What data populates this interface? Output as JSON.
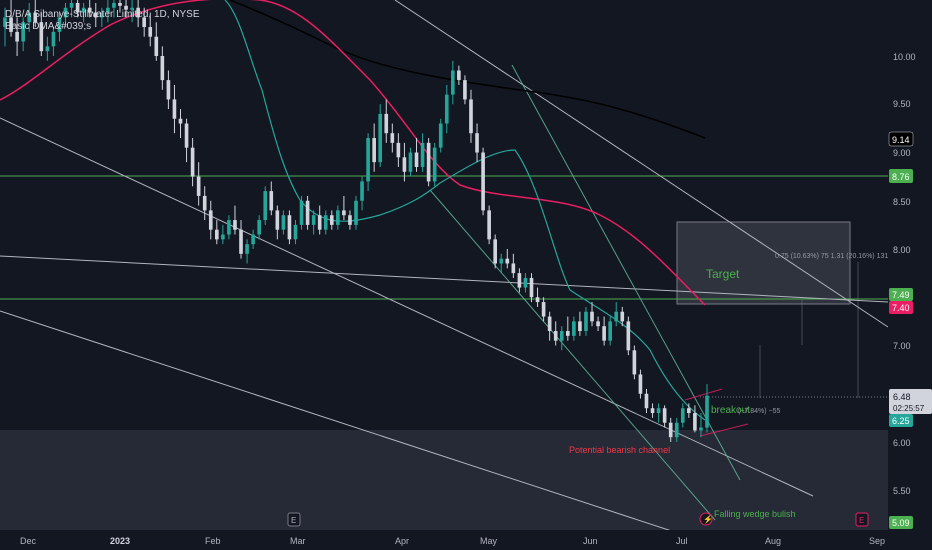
{
  "header": {
    "title": "D/B/A Sibanye-Stillwater Limited, 1D, NYSE",
    "indicator": "Basic DMA&#039;s"
  },
  "theme": {
    "background": "#131722",
    "up": "#26a69a",
    "down": "#d1d4dc",
    "ma_fast": "#26a69a",
    "ma_slow": "#e91e63",
    "ma_long": "#000000",
    "hline": "#4caf50",
    "trendline": "#b2b5be",
    "text": "#b2b5be"
  },
  "axis": {
    "y_ticks": [
      "10.00",
      "9.50",
      "9.00",
      "8.50",
      "8.00",
      "7.00",
      "6.00",
      "5.50"
    ],
    "x_ticks": [
      "Dec",
      "2023",
      "Feb",
      "Mar",
      "Apr",
      "May",
      "Jun",
      "Jul",
      "Aug",
      "Sep"
    ]
  },
  "price_tags": {
    "p914": "9.14",
    "p876": "8.76",
    "p749": "7.49",
    "p740": "7.40",
    "p648": "6.48",
    "countdown": "02:25:57",
    "p625": "6.25",
    "p509": "5.09"
  },
  "annotations": {
    "target": "Target",
    "measure": "0.75 (10.63%) 75 1.31 (20.16%) 131",
    "breakout": "breakout",
    "breakout_measure": "(−7.84%) −55",
    "bearish_channel": "Potential bearish channel",
    "falling_wedge": "Falling wedge bulish",
    "event_e": "E"
  },
  "chart_data": {
    "type": "candlestick",
    "title": "D/B/A Sibanye-Stillwater Limited, 1D, NYSE",
    "ylim": [
      5.0,
      10.6
    ],
    "x_range": [
      "Nov 2022",
      "Sep 2023"
    ],
    "horizontal_levels": [
      8.76,
      7.49
    ],
    "last_price": 6.48,
    "moving_average_values": [
      9.14,
      7.4,
      6.25
    ],
    "y_ticks": [
      10.0,
      9.5,
      9.0,
      8.5,
      8.0,
      7.0,
      6.0,
      5.5
    ],
    "candles": [
      {
        "o": 10.3,
        "h": 10.5,
        "l": 10.1,
        "c": 10.4
      },
      {
        "o": 10.4,
        "h": 10.6,
        "l": 10.2,
        "c": 10.25
      },
      {
        "o": 10.25,
        "h": 10.4,
        "l": 10.0,
        "c": 10.15
      },
      {
        "o": 10.15,
        "h": 10.4,
        "l": 10.05,
        "c": 10.35
      },
      {
        "o": 10.35,
        "h": 10.55,
        "l": 10.25,
        "c": 10.45
      },
      {
        "o": 10.45,
        "h": 10.6,
        "l": 10.3,
        "c": 10.35
      },
      {
        "o": 10.35,
        "h": 10.45,
        "l": 10.0,
        "c": 10.05
      },
      {
        "o": 10.05,
        "h": 10.2,
        "l": 9.95,
        "c": 10.1
      },
      {
        "o": 10.1,
        "h": 10.3,
        "l": 10.0,
        "c": 10.25
      },
      {
        "o": 10.25,
        "h": 10.45,
        "l": 10.15,
        "c": 10.4
      },
      {
        "o": 10.4,
        "h": 10.55,
        "l": 10.3,
        "c": 10.5
      },
      {
        "o": 10.5,
        "h": 10.6,
        "l": 10.4,
        "c": 10.55
      },
      {
        "o": 10.55,
        "h": 10.6,
        "l": 10.4,
        "c": 10.45
      },
      {
        "o": 10.45,
        "h": 10.55,
        "l": 10.35,
        "c": 10.5
      },
      {
        "o": 10.5,
        "h": 10.6,
        "l": 10.4,
        "c": 10.45
      },
      {
        "o": 10.45,
        "h": 10.55,
        "l": 10.3,
        "c": 10.4
      },
      {
        "o": 10.4,
        "h": 10.5,
        "l": 10.3,
        "c": 10.45
      },
      {
        "o": 10.45,
        "h": 10.58,
        "l": 10.35,
        "c": 10.5
      },
      {
        "o": 10.5,
        "h": 10.6,
        "l": 10.4,
        "c": 10.55
      },
      {
        "o": 10.55,
        "h": 10.6,
        "l": 10.45,
        "c": 10.52
      },
      {
        "o": 10.52,
        "h": 10.6,
        "l": 10.4,
        "c": 10.48
      },
      {
        "o": 10.48,
        "h": 10.58,
        "l": 10.35,
        "c": 10.5
      },
      {
        "o": 10.5,
        "h": 10.6,
        "l": 10.3,
        "c": 10.4
      },
      {
        "o": 10.4,
        "h": 10.5,
        "l": 10.2,
        "c": 10.3
      },
      {
        "o": 10.3,
        "h": 10.45,
        "l": 10.1,
        "c": 10.2
      },
      {
        "o": 10.2,
        "h": 10.35,
        "l": 9.95,
        "c": 10.0
      },
      {
        "o": 10.0,
        "h": 10.1,
        "l": 9.65,
        "c": 9.75
      },
      {
        "o": 9.75,
        "h": 9.85,
        "l": 9.45,
        "c": 9.55
      },
      {
        "o": 9.55,
        "h": 9.7,
        "l": 9.2,
        "c": 9.35
      },
      {
        "o": 9.35,
        "h": 9.45,
        "l": 9.15,
        "c": 9.3
      },
      {
        "o": 9.3,
        "h": 9.35,
        "l": 8.9,
        "c": 9.05
      },
      {
        "o": 9.05,
        "h": 9.15,
        "l": 8.65,
        "c": 8.75
      },
      {
        "o": 8.75,
        "h": 8.9,
        "l": 8.45,
        "c": 8.55
      },
      {
        "o": 8.55,
        "h": 8.65,
        "l": 8.3,
        "c": 8.4
      },
      {
        "o": 8.4,
        "h": 8.5,
        "l": 8.1,
        "c": 8.2
      },
      {
        "o": 8.2,
        "h": 8.3,
        "l": 8.05,
        "c": 8.1
      },
      {
        "o": 8.1,
        "h": 8.25,
        "l": 8.05,
        "c": 8.15
      },
      {
        "o": 8.15,
        "h": 8.35,
        "l": 8.1,
        "c": 8.3
      },
      {
        "o": 8.3,
        "h": 8.45,
        "l": 8.15,
        "c": 8.2
      },
      {
        "o": 8.2,
        "h": 8.3,
        "l": 7.9,
        "c": 7.95
      },
      {
        "o": 7.95,
        "h": 8.1,
        "l": 7.85,
        "c": 8.05
      },
      {
        "o": 8.05,
        "h": 8.2,
        "l": 8.0,
        "c": 8.15
      },
      {
        "o": 8.15,
        "h": 8.35,
        "l": 8.1,
        "c": 8.3
      },
      {
        "o": 8.3,
        "h": 8.65,
        "l": 8.25,
        "c": 8.6
      },
      {
        "o": 8.6,
        "h": 8.7,
        "l": 8.35,
        "c": 8.4
      },
      {
        "o": 8.4,
        "h": 8.45,
        "l": 8.1,
        "c": 8.2
      },
      {
        "o": 8.2,
        "h": 8.4,
        "l": 8.15,
        "c": 8.35
      },
      {
        "o": 8.35,
        "h": 8.4,
        "l": 8.05,
        "c": 8.1
      },
      {
        "o": 8.1,
        "h": 8.3,
        "l": 8.05,
        "c": 8.25
      },
      {
        "o": 8.25,
        "h": 8.55,
        "l": 8.2,
        "c": 8.5
      },
      {
        "o": 8.5,
        "h": 8.55,
        "l": 8.2,
        "c": 8.25
      },
      {
        "o": 8.25,
        "h": 8.4,
        "l": 8.15,
        "c": 8.35
      },
      {
        "o": 8.35,
        "h": 8.45,
        "l": 8.15,
        "c": 8.2
      },
      {
        "o": 8.2,
        "h": 8.4,
        "l": 8.15,
        "c": 8.35
      },
      {
        "o": 8.35,
        "h": 8.4,
        "l": 8.2,
        "c": 8.25
      },
      {
        "o": 8.25,
        "h": 8.45,
        "l": 8.2,
        "c": 8.4
      },
      {
        "o": 8.4,
        "h": 8.55,
        "l": 8.3,
        "c": 8.35
      },
      {
        "o": 8.35,
        "h": 8.4,
        "l": 8.2,
        "c": 8.25
      },
      {
        "o": 8.25,
        "h": 8.55,
        "l": 8.2,
        "c": 8.5
      },
      {
        "o": 8.5,
        "h": 8.75,
        "l": 8.4,
        "c": 8.7
      },
      {
        "o": 8.7,
        "h": 9.2,
        "l": 8.6,
        "c": 9.15
      },
      {
        "o": 9.15,
        "h": 9.3,
        "l": 8.8,
        "c": 8.9
      },
      {
        "o": 8.9,
        "h": 9.5,
        "l": 8.85,
        "c": 9.4
      },
      {
        "o": 9.4,
        "h": 9.55,
        "l": 9.1,
        "c": 9.2
      },
      {
        "o": 9.2,
        "h": 9.3,
        "l": 9.0,
        "c": 9.1
      },
      {
        "o": 9.1,
        "h": 9.2,
        "l": 8.85,
        "c": 8.95
      },
      {
        "o": 8.95,
        "h": 9.1,
        "l": 8.7,
        "c": 8.8
      },
      {
        "o": 8.8,
        "h": 9.05,
        "l": 8.75,
        "c": 9.0
      },
      {
        "o": 9.0,
        "h": 9.15,
        "l": 8.8,
        "c": 8.85
      },
      {
        "o": 8.85,
        "h": 9.2,
        "l": 8.8,
        "c": 9.1
      },
      {
        "o": 9.1,
        "h": 9.15,
        "l": 8.65,
        "c": 8.7
      },
      {
        "o": 8.7,
        "h": 9.1,
        "l": 8.65,
        "c": 9.05
      },
      {
        "o": 9.05,
        "h": 9.35,
        "l": 9.0,
        "c": 9.3
      },
      {
        "o": 9.3,
        "h": 9.7,
        "l": 9.2,
        "c": 9.6
      },
      {
        "o": 9.6,
        "h": 9.95,
        "l": 9.5,
        "c": 9.85
      },
      {
        "o": 9.85,
        "h": 9.9,
        "l": 9.7,
        "c": 9.75
      },
      {
        "o": 9.75,
        "h": 9.8,
        "l": 9.5,
        "c": 9.55
      },
      {
        "o": 9.55,
        "h": 9.65,
        "l": 9.1,
        "c": 9.2
      },
      {
        "o": 9.2,
        "h": 9.3,
        "l": 8.9,
        "c": 9.0
      },
      {
        "o": 9.0,
        "h": 9.05,
        "l": 8.35,
        "c": 8.4
      },
      {
        "o": 8.4,
        "h": 8.45,
        "l": 8.05,
        "c": 8.1
      },
      {
        "o": 8.1,
        "h": 8.15,
        "l": 7.8,
        "c": 7.85
      },
      {
        "o": 7.85,
        "h": 7.95,
        "l": 7.75,
        "c": 7.9
      },
      {
        "o": 7.9,
        "h": 8.0,
        "l": 7.8,
        "c": 7.85
      },
      {
        "o": 7.85,
        "h": 7.95,
        "l": 7.7,
        "c": 7.75
      },
      {
        "o": 7.75,
        "h": 7.8,
        "l": 7.55,
        "c": 7.6
      },
      {
        "o": 7.6,
        "h": 7.75,
        "l": 7.55,
        "c": 7.7
      },
      {
        "o": 7.7,
        "h": 7.75,
        "l": 7.45,
        "c": 7.5
      },
      {
        "o": 7.5,
        "h": 7.6,
        "l": 7.4,
        "c": 7.45
      },
      {
        "o": 7.45,
        "h": 7.5,
        "l": 7.25,
        "c": 7.3
      },
      {
        "o": 7.3,
        "h": 7.35,
        "l": 7.05,
        "c": 7.15
      },
      {
        "o": 7.15,
        "h": 7.25,
        "l": 7.0,
        "c": 7.05
      },
      {
        "o": 7.05,
        "h": 7.2,
        "l": 6.95,
        "c": 7.15
      },
      {
        "o": 7.15,
        "h": 7.3,
        "l": 7.05,
        "c": 7.1
      },
      {
        "o": 7.1,
        "h": 7.3,
        "l": 7.05,
        "c": 7.25
      },
      {
        "o": 7.25,
        "h": 7.35,
        "l": 7.1,
        "c": 7.15
      },
      {
        "o": 7.15,
        "h": 7.4,
        "l": 7.1,
        "c": 7.35
      },
      {
        "o": 7.35,
        "h": 7.45,
        "l": 7.2,
        "c": 7.25
      },
      {
        "o": 7.25,
        "h": 7.3,
        "l": 7.15,
        "c": 7.2
      },
      {
        "o": 7.2,
        "h": 7.3,
        "l": 7.0,
        "c": 7.05
      },
      {
        "o": 7.05,
        "h": 7.3,
        "l": 7.0,
        "c": 7.25
      },
      {
        "o": 7.25,
        "h": 7.45,
        "l": 7.2,
        "c": 7.35
      },
      {
        "o": 7.35,
        "h": 7.4,
        "l": 7.2,
        "c": 7.25
      },
      {
        "o": 7.25,
        "h": 7.3,
        "l": 6.9,
        "c": 6.95
      },
      {
        "o": 6.95,
        "h": 7.0,
        "l": 6.65,
        "c": 6.7
      },
      {
        "o": 6.7,
        "h": 6.75,
        "l": 6.45,
        "c": 6.5
      },
      {
        "o": 6.5,
        "h": 6.55,
        "l": 6.3,
        "c": 6.35
      },
      {
        "o": 6.35,
        "h": 6.4,
        "l": 6.25,
        "c": 6.3
      },
      {
        "o": 6.3,
        "h": 6.4,
        "l": 6.2,
        "c": 6.35
      },
      {
        "o": 6.35,
        "h": 6.38,
        "l": 6.15,
        "c": 6.2
      },
      {
        "o": 6.2,
        "h": 6.25,
        "l": 6.0,
        "c": 6.05
      },
      {
        "o": 6.05,
        "h": 6.25,
        "l": 6.0,
        "c": 6.2
      },
      {
        "o": 6.2,
        "h": 6.4,
        "l": 6.15,
        "c": 6.35
      },
      {
        "o": 6.35,
        "h": 6.4,
        "l": 6.25,
        "c": 6.3
      },
      {
        "o": 6.3,
        "h": 6.38,
        "l": 6.1,
        "c": 6.12
      },
      {
        "o": 6.12,
        "h": 6.3,
        "l": 6.05,
        "c": 6.15
      },
      {
        "o": 6.15,
        "h": 6.6,
        "l": 6.1,
        "c": 6.48
      }
    ]
  }
}
